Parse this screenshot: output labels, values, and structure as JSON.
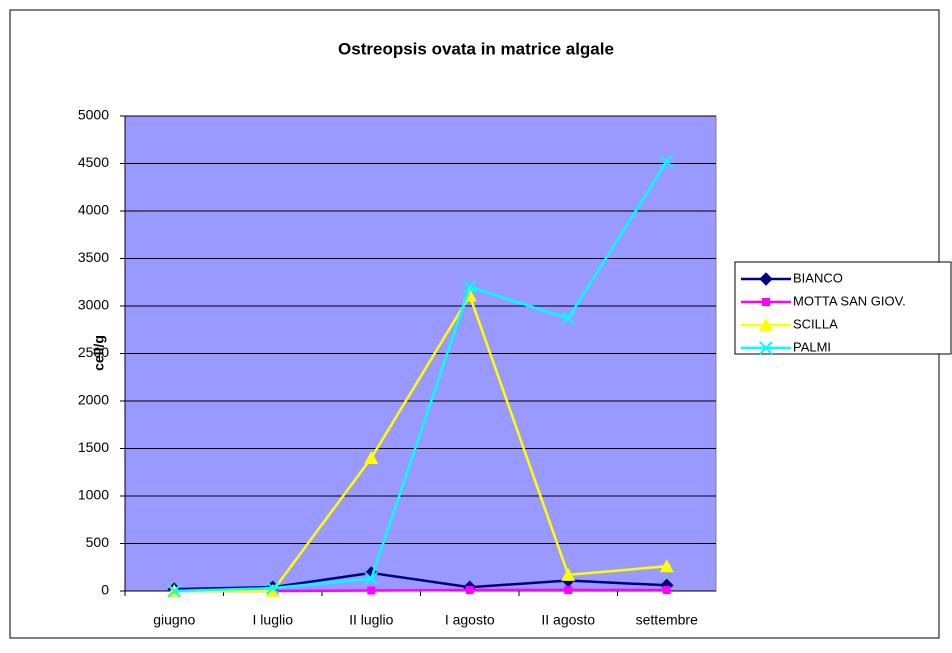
{
  "chart_data": {
    "type": "line",
    "title": "Ostreopsis ovata in matrice algale",
    "y_label": "cell/g",
    "categories": [
      "giugno",
      "I luglio",
      "II luglio",
      "I agosto",
      "II agosto",
      "settembre"
    ],
    "series": [
      {
        "name": "BIANCO",
        "color": "#000080",
        "marker": "diamond",
        "values": [
          20,
          40,
          190,
          40,
          110,
          60
        ]
      },
      {
        "name": "MOTTA SAN GIOV.",
        "color": "#ff00ff",
        "marker": "square",
        "values": [
          0,
          0,
          5,
          10,
          10,
          10
        ]
      },
      {
        "name": "SCILLA",
        "color": "#ffff00",
        "marker": "triangle",
        "values": [
          0,
          0,
          1400,
          3110,
          170,
          260
        ]
      },
      {
        "name": "PALMI",
        "color": "#00ffff",
        "marker": "x",
        "values": [
          0,
          30,
          130,
          3200,
          2870,
          4520
        ]
      }
    ],
    "ylim": [
      0,
      5000
    ],
    "yticks": [
      0,
      500,
      1000,
      1500,
      2000,
      2500,
      3000,
      3500,
      4000,
      4500,
      5000
    ],
    "grid": true,
    "legend": "right",
    "plot_color": "#9999ff"
  }
}
